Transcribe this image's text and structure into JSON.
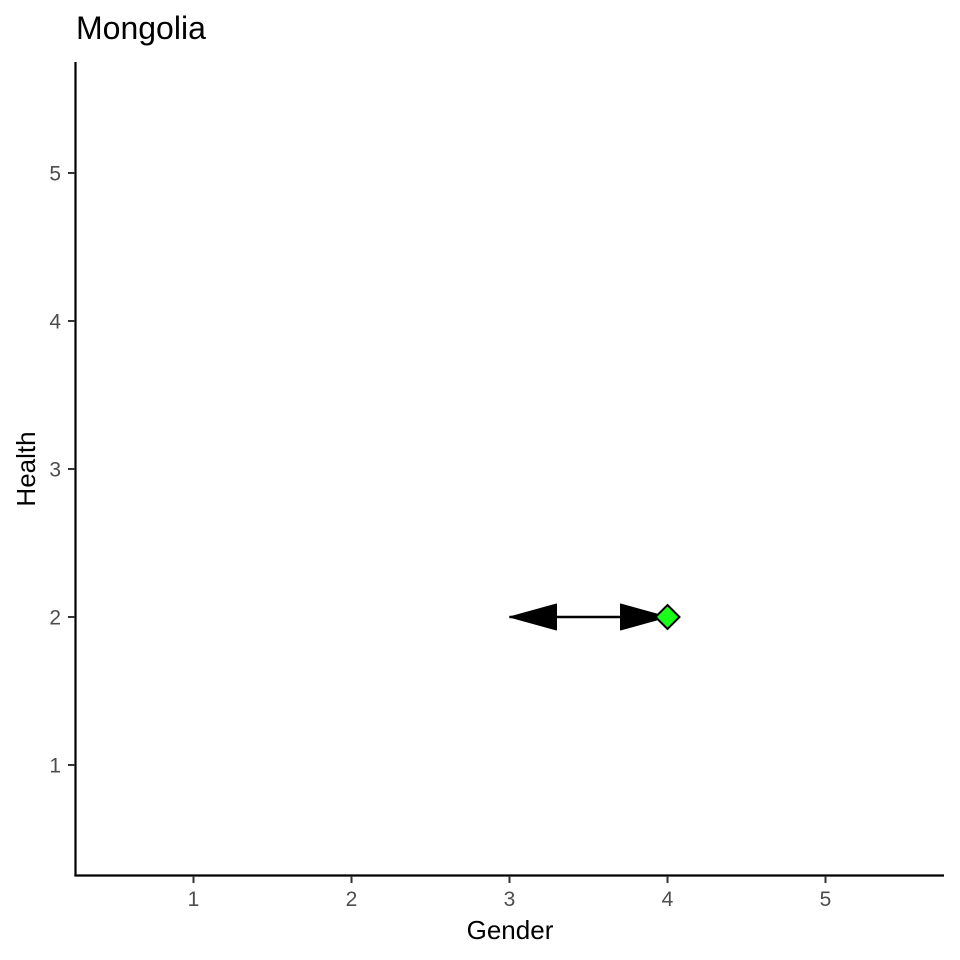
{
  "chart_data": {
    "type": "scatter",
    "title": "Mongolia",
    "xlabel": "Gender",
    "ylabel": "Health",
    "xlim": [
      0.25,
      5.75
    ],
    "ylim": [
      0.25,
      5.75
    ],
    "xticks": [
      1,
      2,
      3,
      4,
      5
    ],
    "yticks": [
      1,
      2,
      3,
      4,
      5
    ],
    "grid": false,
    "arrows": [
      {
        "from": [
          3,
          2
        ],
        "to": [
          4,
          2
        ],
        "heads": "both",
        "color": "#000000"
      }
    ],
    "points": [
      {
        "x": 4,
        "y": 2,
        "shape": "diamond",
        "fill": "#1aff1a",
        "stroke": "#000000"
      }
    ]
  }
}
